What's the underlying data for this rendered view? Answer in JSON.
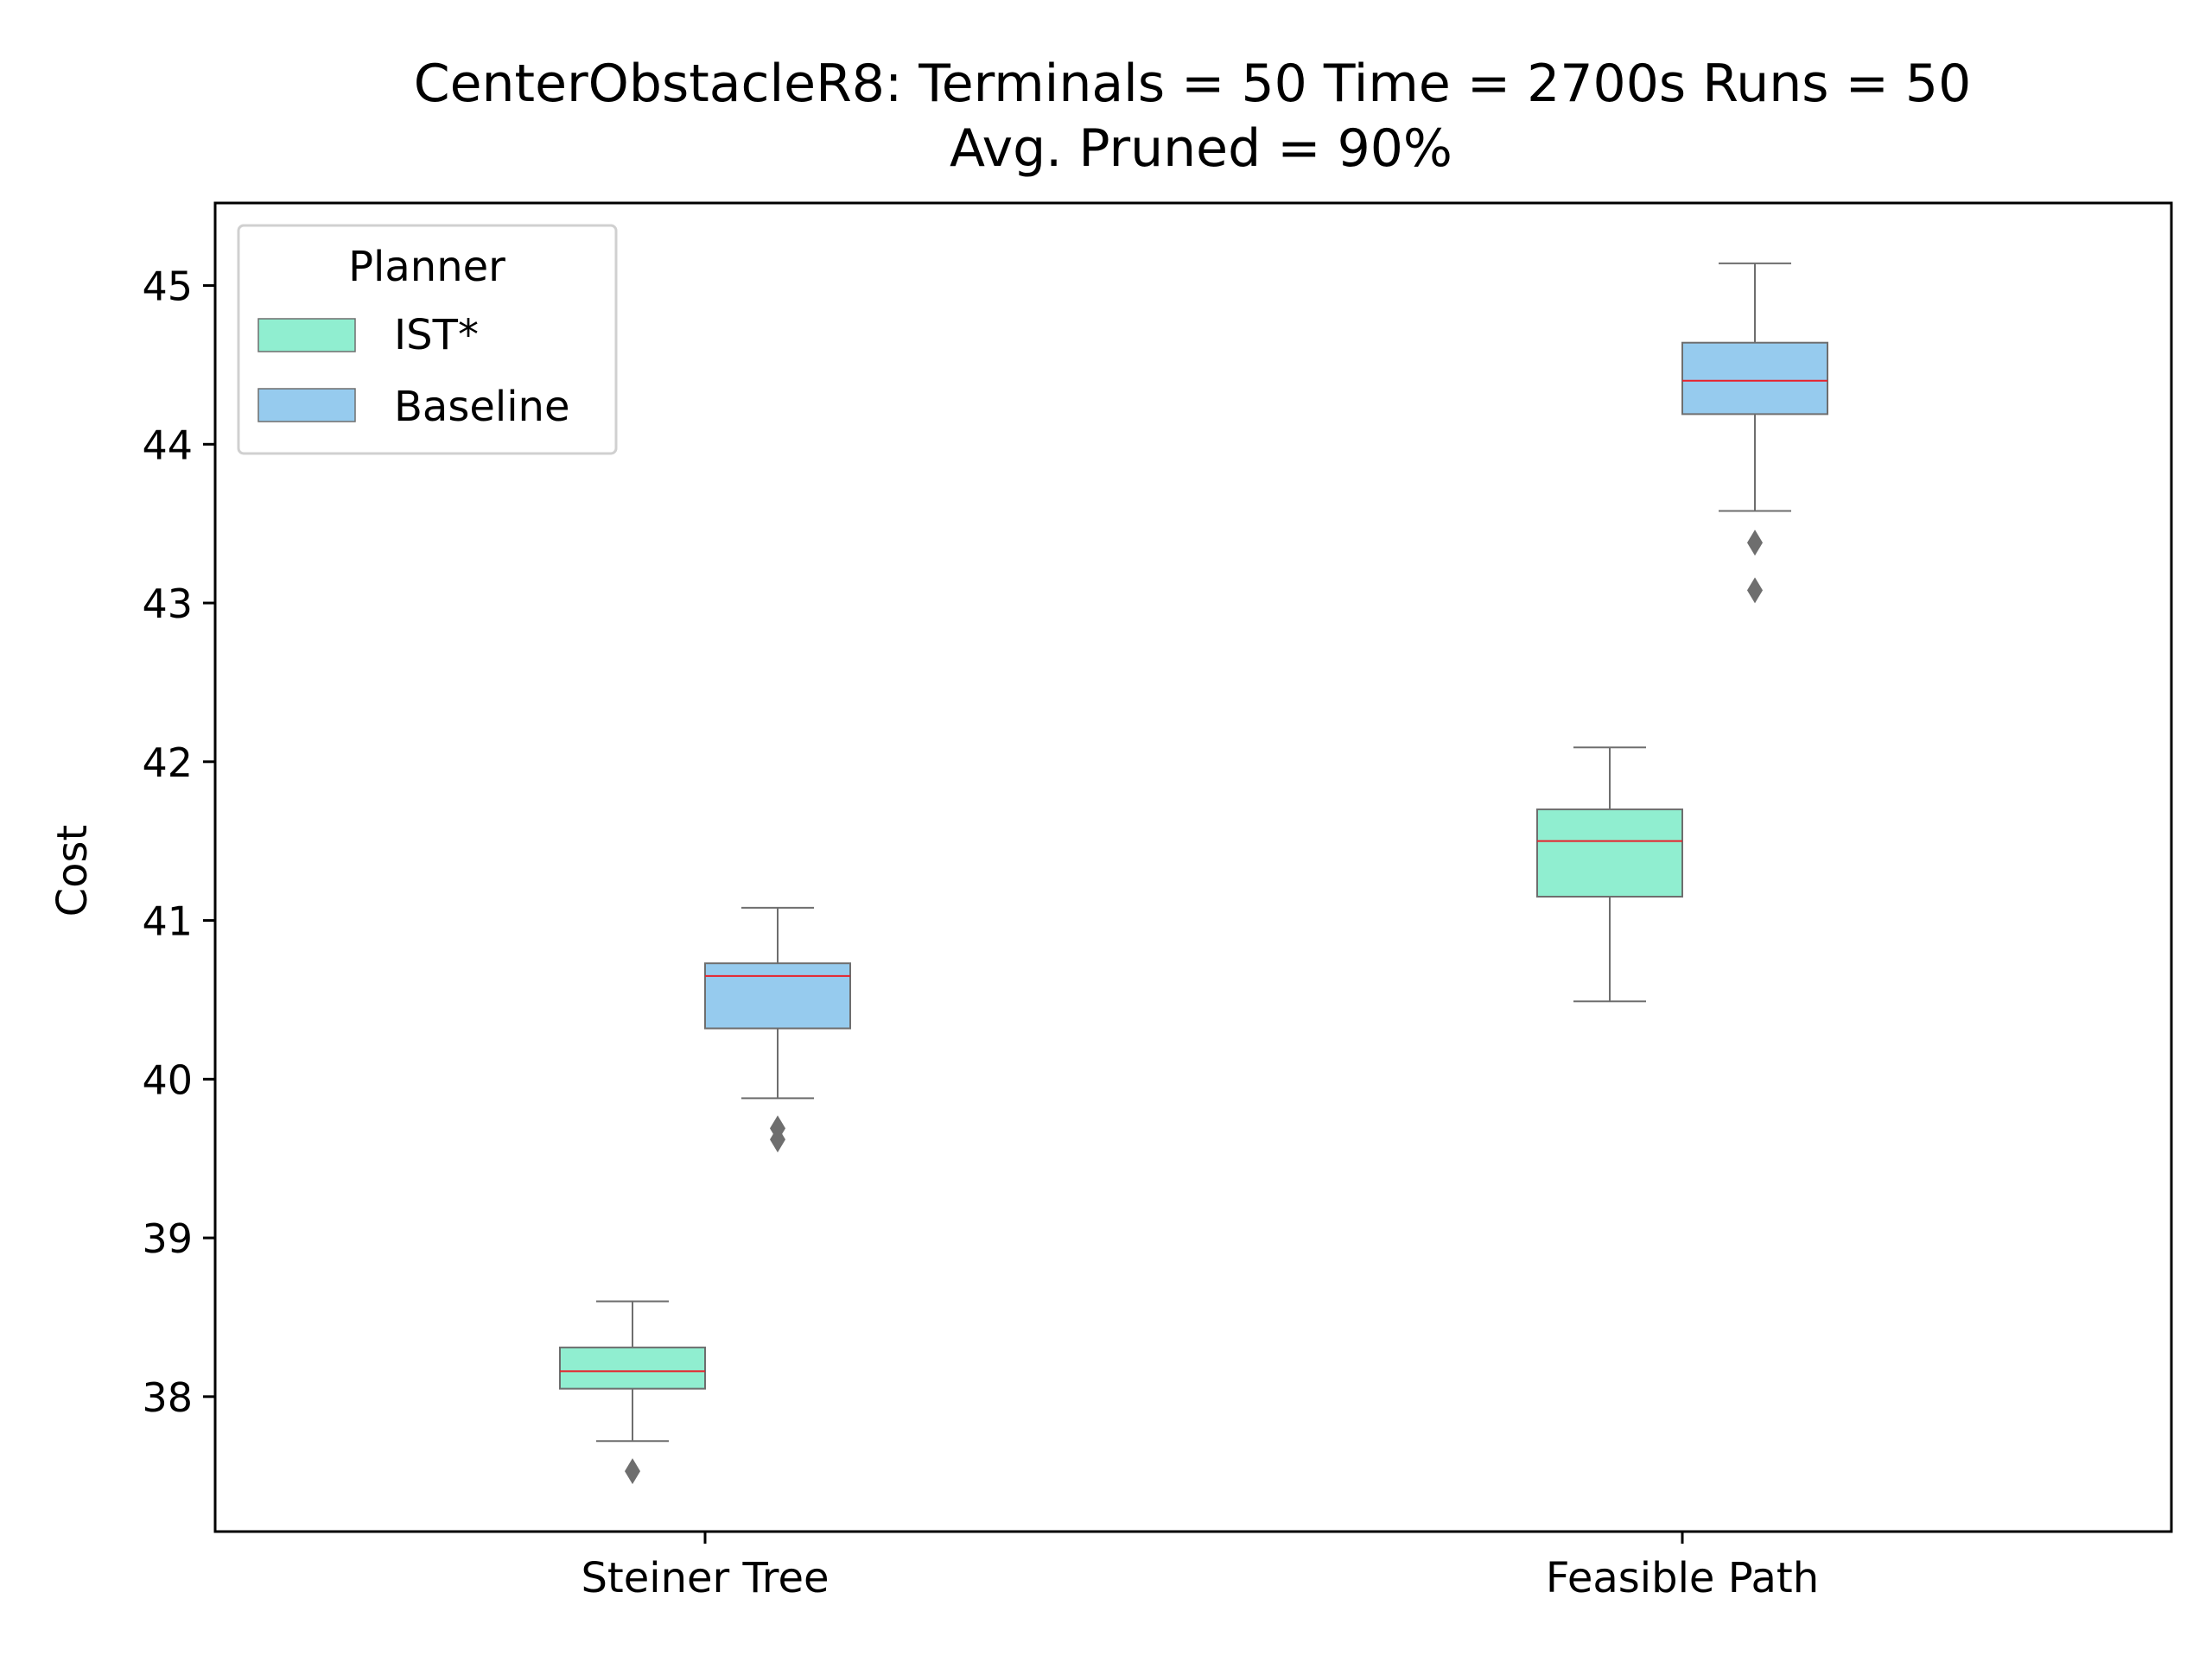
{
  "chart_data": {
    "type": "box",
    "title": "CenterObstacleR8:  Terminals = 50  Time = 2700s  Runs = 50",
    "subtitle": "Avg. Pruned = 90%",
    "xlabel": "",
    "ylabel": "Cost",
    "ylim": [
      37.15,
      45.52
    ],
    "yticks": [
      38,
      39,
      40,
      41,
      42,
      43,
      44,
      45
    ],
    "grid": false,
    "legend": {
      "title": "Planner",
      "placement": "top-left"
    },
    "categories": [
      "Steiner Tree",
      "Feasible Path"
    ],
    "series": [
      {
        "name": "IST*",
        "color": "#90EED0",
        "boxes": [
          {
            "category": "Steiner Tree",
            "whisker_low": 37.72,
            "q1": 38.05,
            "median": 38.16,
            "q3": 38.31,
            "whisker_high": 38.6,
            "outliers": [
              37.53
            ]
          },
          {
            "category": "Feasible Path",
            "whisker_low": 40.49,
            "q1": 41.15,
            "median": 41.5,
            "q3": 41.7,
            "whisker_high": 42.09,
            "outliers": []
          }
        ]
      },
      {
        "name": "Baseline",
        "color": "#96CBEE",
        "boxes": [
          {
            "category": "Steiner Tree",
            "whisker_low": 39.88,
            "q1": 40.32,
            "median": 40.65,
            "q3": 40.73,
            "whisker_high": 41.08,
            "outliers": [
              39.69,
              39.62
            ]
          },
          {
            "category": "Feasible Path",
            "whisker_low": 43.58,
            "q1": 44.19,
            "median": 44.4,
            "q3": 44.64,
            "whisker_high": 45.14,
            "outliers": [
              43.38,
              43.08
            ]
          }
        ]
      }
    ],
    "median_color": "#E8202A",
    "line_color": "#6E6E6E",
    "outlier_color": "#6E6E6E"
  }
}
